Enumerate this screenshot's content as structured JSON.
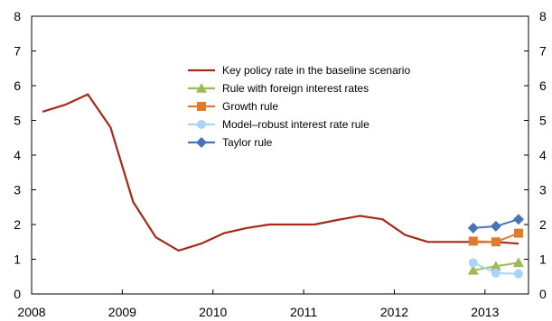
{
  "chart_data": {
    "type": "line",
    "title": "",
    "xlabel": "",
    "ylabel": "",
    "xlim": [
      2008.0,
      2013.48
    ],
    "ylim": [
      0,
      8
    ],
    "x_ticks": [
      2008,
      2009,
      2010,
      2011,
      2012,
      2013
    ],
    "y_ticks": [
      0,
      1,
      2,
      3,
      4,
      5,
      6,
      7,
      8
    ],
    "y_ticks_mirrored_right": true,
    "grid": false,
    "legend_position": "upper-center",
    "series": [
      {
        "name": "Key policy rate in the baseline scenario",
        "color": "#A52A1A",
        "marker": "none",
        "x": [
          2008.12,
          2008.37,
          2008.62,
          2008.87,
          2009.12,
          2009.37,
          2009.62,
          2009.87,
          2010.12,
          2010.37,
          2010.62,
          2010.87,
          2011.12,
          2011.37,
          2011.62,
          2011.87,
          2012.12,
          2012.37,
          2012.62,
          2012.87,
          2013.12,
          2013.37
        ],
        "y": [
          5.25,
          5.45,
          5.75,
          4.8,
          2.65,
          1.63,
          1.25,
          1.45,
          1.75,
          1.9,
          2.0,
          2.0,
          2.0,
          2.13,
          2.25,
          2.15,
          1.7,
          1.5,
          1.5,
          1.5,
          1.5,
          1.45
        ]
      },
      {
        "name": "Rule with foreign interest rates",
        "color": "#9BBB59",
        "marker": "triangle",
        "x": [
          2012.87,
          2013.12,
          2013.37
        ],
        "y": [
          0.68,
          0.8,
          0.9
        ]
      },
      {
        "name": "Growth rule",
        "color": "#E07B2C",
        "marker": "square",
        "x": [
          2012.87,
          2013.12,
          2013.37
        ],
        "y": [
          1.52,
          1.5,
          1.75
        ]
      },
      {
        "name": "Model–robust interest rate rule",
        "color": "#A9D4F5",
        "marker": "circle",
        "x": [
          2012.87,
          2013.12,
          2013.37
        ],
        "y": [
          0.9,
          0.6,
          0.58
        ]
      },
      {
        "name": "Taylor rule",
        "color": "#4A73B5",
        "marker": "diamond",
        "x": [
          2012.87,
          2013.12,
          2013.37
        ],
        "y": [
          1.9,
          1.95,
          2.15
        ]
      }
    ]
  }
}
